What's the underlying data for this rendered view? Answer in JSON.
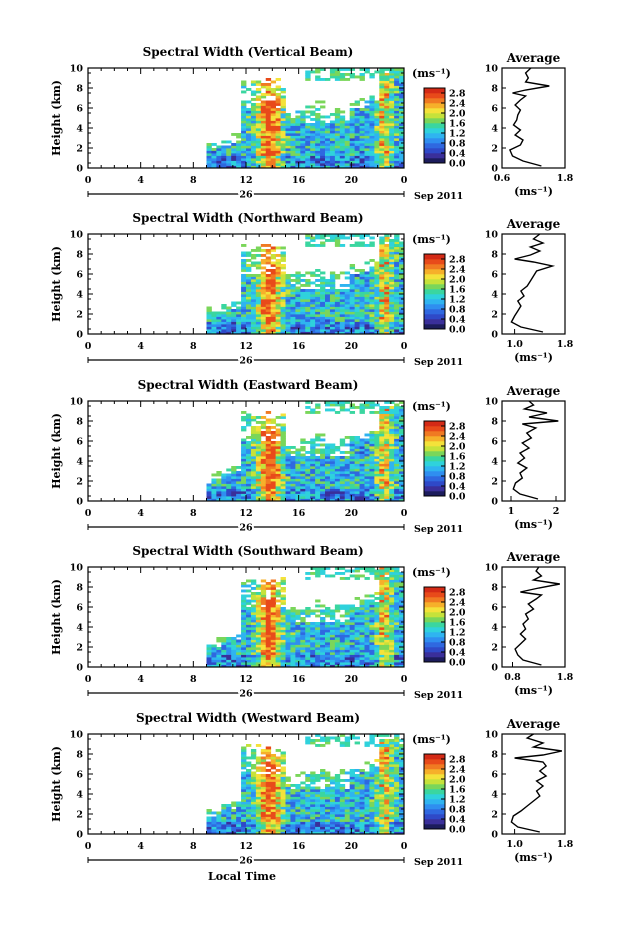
{
  "colors": {
    "scale": [
      "#1c1c5c",
      "#3a2f9a",
      "#2f49c8",
      "#2f68e0",
      "#2f8ef0",
      "#2fb4f0",
      "#2fd2dc",
      "#3ad6a0",
      "#7ad65a",
      "#c6e23a",
      "#f4e23a",
      "#f6b02a",
      "#f07a22",
      "#e84a1a",
      "#d42a16"
    ]
  },
  "figure": {
    "x_label": "Local Time",
    "date_label": "Sep 2011",
    "day_label": "26",
    "colorbar_unit": "(ms⁻¹)",
    "average_title": "Average",
    "average_unit": "(ms⁻¹)"
  },
  "chart_data": [
    {
      "type": "heatmap",
      "title": "Spectral Width (Vertical Beam)",
      "ylabel": "Height (km)",
      "xlim": [
        0,
        24
      ],
      "x_ticks": [
        "0",
        "4",
        "8",
        "12",
        "16",
        "20",
        "0"
      ],
      "ylim": [
        0,
        10
      ],
      "y_ticks": [
        "0",
        "2",
        "4",
        "6",
        "8",
        "10"
      ],
      "colorbar": {
        "ticks": [
          "0.0",
          "0.4",
          "0.8",
          "1.2",
          "1.6",
          "2.0",
          "2.4",
          "2.8"
        ],
        "range": [
          0,
          3.0
        ]
      },
      "average": {
        "x_ticks": [
          "0.6",
          "1.8"
        ],
        "xlim": [
          0.6,
          1.8
        ],
        "ylim": [
          0,
          10
        ],
        "profile": [
          [
            0.2,
            1.35
          ],
          [
            0.7,
            1.0
          ],
          [
            1.2,
            0.8
          ],
          [
            1.8,
            0.75
          ],
          [
            2.3,
            0.95
          ],
          [
            2.8,
            1.0
          ],
          [
            3.3,
            0.85
          ],
          [
            3.8,
            0.95
          ],
          [
            4.3,
            0.82
          ],
          [
            4.8,
            0.88
          ],
          [
            5.3,
            0.9
          ],
          [
            5.8,
            0.95
          ],
          [
            6.3,
            0.85
          ],
          [
            6.8,
            0.95
          ],
          [
            7.2,
            1.05
          ],
          [
            7.5,
            0.8
          ],
          [
            7.8,
            1.05
          ],
          [
            8.2,
            1.5
          ],
          [
            8.6,
            1.05
          ],
          [
            9.0,
            1.1
          ],
          [
            9.5,
            1.05
          ],
          [
            10.0,
            1.15
          ]
        ]
      }
    },
    {
      "type": "heatmap",
      "title": "Spectral Width (Northward Beam)",
      "ylabel": "Height (km)",
      "xlim": [
        0,
        24
      ],
      "x_ticks": [
        "0",
        "4",
        "8",
        "12",
        "16",
        "20",
        "0"
      ],
      "ylim": [
        0,
        10
      ],
      "y_ticks": [
        "0",
        "2",
        "4",
        "6",
        "8",
        "10"
      ],
      "colorbar": {
        "ticks": [
          "0.0",
          "0.4",
          "0.8",
          "1.2",
          "1.6",
          "2.0",
          "2.4",
          "2.8"
        ],
        "range": [
          0,
          3.0
        ]
      },
      "average": {
        "x_ticks": [
          "1.0",
          "1.8"
        ],
        "xlim": [
          0.8,
          1.8
        ],
        "ylim": [
          0,
          10
        ],
        "profile": [
          [
            0.2,
            1.45
          ],
          [
            0.7,
            1.1
          ],
          [
            1.2,
            0.95
          ],
          [
            1.8,
            1.0
          ],
          [
            2.3,
            1.05
          ],
          [
            2.8,
            1.1
          ],
          [
            3.3,
            1.05
          ],
          [
            3.8,
            1.15
          ],
          [
            4.3,
            1.1
          ],
          [
            4.8,
            1.2
          ],
          [
            5.3,
            1.25
          ],
          [
            5.8,
            1.3
          ],
          [
            6.3,
            1.35
          ],
          [
            6.8,
            1.6
          ],
          [
            7.2,
            1.3
          ],
          [
            7.5,
            1.0
          ],
          [
            7.9,
            1.25
          ],
          [
            8.3,
            1.4
          ],
          [
            8.7,
            1.25
          ],
          [
            9.1,
            1.45
          ],
          [
            9.5,
            1.3
          ],
          [
            10.0,
            1.4
          ]
        ]
      }
    },
    {
      "type": "heatmap",
      "title": "Spectral Width (Eastward Beam)",
      "ylabel": "Height (km)",
      "xlim": [
        0,
        24
      ],
      "x_ticks": [
        "0",
        "4",
        "8",
        "12",
        "16",
        "20",
        "0"
      ],
      "ylim": [
        0,
        10
      ],
      "y_ticks": [
        "0",
        "2",
        "4",
        "6",
        "8",
        "10"
      ],
      "colorbar": {
        "ticks": [
          "0.0",
          "0.4",
          "0.8",
          "1.2",
          "1.6",
          "2.0",
          "2.4",
          "2.8"
        ],
        "range": [
          0,
          3.0
        ]
      },
      "average": {
        "x_ticks": [
          "1",
          "2"
        ],
        "xlim": [
          0.8,
          2.2
        ],
        "ylim": [
          0,
          10
        ],
        "profile": [
          [
            0.2,
            1.6
          ],
          [
            0.7,
            1.2
          ],
          [
            1.2,
            1.05
          ],
          [
            1.8,
            1.1
          ],
          [
            2.3,
            1.25
          ],
          [
            2.8,
            1.2
          ],
          [
            3.3,
            1.35
          ],
          [
            3.8,
            1.15
          ],
          [
            4.3,
            1.3
          ],
          [
            4.8,
            1.2
          ],
          [
            5.3,
            1.4
          ],
          [
            5.8,
            1.25
          ],
          [
            6.3,
            1.45
          ],
          [
            6.8,
            1.35
          ],
          [
            7.3,
            1.55
          ],
          [
            7.7,
            1.25
          ],
          [
            8.0,
            2.05
          ],
          [
            8.4,
            1.4
          ],
          [
            8.8,
            1.8
          ],
          [
            9.2,
            1.3
          ],
          [
            9.6,
            1.5
          ],
          [
            10.0,
            1.4
          ]
        ]
      }
    },
    {
      "type": "heatmap",
      "title": "Spectral Width (Southward Beam)",
      "ylabel": "Height (km)",
      "xlim": [
        0,
        24
      ],
      "x_ticks": [
        "0",
        "4",
        "8",
        "12",
        "16",
        "20",
        "0"
      ],
      "ylim": [
        0,
        10
      ],
      "y_ticks": [
        "0",
        "2",
        "4",
        "6",
        "8",
        "10"
      ],
      "colorbar": {
        "ticks": [
          "0.0",
          "0.4",
          "0.8",
          "1.2",
          "1.6",
          "2.0",
          "2.4",
          "2.8"
        ],
        "range": [
          0,
          3.0
        ]
      },
      "average": {
        "x_ticks": [
          "0.8",
          "1.8"
        ],
        "xlim": [
          0.6,
          1.8
        ],
        "ylim": [
          0,
          10
        ],
        "profile": [
          [
            0.2,
            1.35
          ],
          [
            0.7,
            1.0
          ],
          [
            1.2,
            0.9
          ],
          [
            1.8,
            0.85
          ],
          [
            2.3,
            0.95
          ],
          [
            2.8,
            1.05
          ],
          [
            3.3,
            0.95
          ],
          [
            3.8,
            1.05
          ],
          [
            4.3,
            1.0
          ],
          [
            4.8,
            1.1
          ],
          [
            5.3,
            1.05
          ],
          [
            5.8,
            1.2
          ],
          [
            6.3,
            1.1
          ],
          [
            6.8,
            1.25
          ],
          [
            7.2,
            1.35
          ],
          [
            7.5,
            0.95
          ],
          [
            7.9,
            1.3
          ],
          [
            8.3,
            1.7
          ],
          [
            8.7,
            1.2
          ],
          [
            9.1,
            1.35
          ],
          [
            9.6,
            1.25
          ],
          [
            10.0,
            1.3
          ]
        ]
      }
    },
    {
      "type": "heatmap",
      "title": "Spectral Width (Westward Beam)",
      "ylabel": "Height (km)",
      "xlim": [
        0,
        24
      ],
      "x_ticks": [
        "0",
        "4",
        "8",
        "12",
        "16",
        "20",
        "0"
      ],
      "ylim": [
        0,
        10
      ],
      "y_ticks": [
        "0",
        "2",
        "4",
        "6",
        "8",
        "10"
      ],
      "colorbar": {
        "ticks": [
          "0.0",
          "0.4",
          "0.8",
          "1.2",
          "1.6",
          "2.0",
          "2.4",
          "2.8"
        ],
        "range": [
          0,
          3.0
        ]
      },
      "average": {
        "x_ticks": [
          "1.0",
          "1.8"
        ],
        "xlim": [
          0.8,
          1.8
        ],
        "ylim": [
          0,
          10
        ],
        "profile": [
          [
            0.2,
            1.4
          ],
          [
            0.7,
            1.05
          ],
          [
            1.2,
            0.95
          ],
          [
            1.8,
            0.98
          ],
          [
            2.3,
            1.1
          ],
          [
            2.8,
            1.2
          ],
          [
            3.3,
            1.3
          ],
          [
            3.8,
            1.4
          ],
          [
            4.3,
            1.35
          ],
          [
            4.8,
            1.45
          ],
          [
            5.3,
            1.35
          ],
          [
            5.8,
            1.5
          ],
          [
            6.3,
            1.4
          ],
          [
            6.8,
            1.5
          ],
          [
            7.2,
            1.45
          ],
          [
            7.6,
            1.0
          ],
          [
            7.9,
            1.45
          ],
          [
            8.3,
            1.75
          ],
          [
            8.7,
            1.3
          ],
          [
            9.1,
            1.45
          ],
          [
            9.6,
            1.2
          ],
          [
            10.0,
            1.3
          ]
        ]
      }
    }
  ]
}
